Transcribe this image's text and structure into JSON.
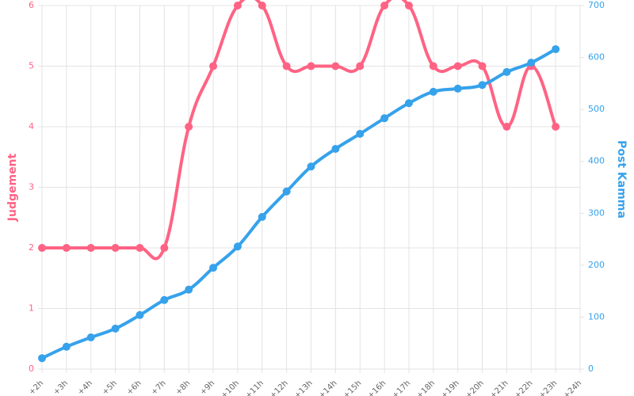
{
  "chart_data": {
    "type": "line",
    "categories": [
      "+2h",
      "+3h",
      "+4h",
      "+5h",
      "+6h",
      "+7h",
      "+8h",
      "+9h",
      "+10h",
      "+11h",
      "+12h",
      "+13h",
      "+14h",
      "+15h",
      "+16h",
      "+17h",
      "+18h",
      "+19h",
      "+20h",
      "+21h",
      "+22h",
      "+23h",
      "+24h"
    ],
    "y_label": "Judgement",
    "y2_label": "Post Kamma",
    "ylim": [
      0,
      6
    ],
    "yticks": [
      0,
      1,
      2,
      3,
      4,
      5,
      6
    ],
    "y2lim": [
      0,
      700
    ],
    "y2ticks": [
      0,
      100,
      200,
      300,
      400,
      500,
      600,
      700
    ],
    "grid": true,
    "series": [
      {
        "name": "Judgement",
        "color": "#ff6384",
        "axis": "y",
        "values": [
          2,
          2,
          2,
          2,
          2,
          2,
          4,
          5,
          6,
          6,
          5,
          5,
          5,
          5,
          6,
          6,
          5,
          5,
          5,
          4,
          5,
          4,
          null
        ]
      },
      {
        "name": "Post Kamma",
        "color": "#36a2eb",
        "axis": "y2",
        "values": [
          21,
          43,
          61,
          78,
          104,
          133,
          153,
          195,
          236,
          293,
          342,
          390,
          424,
          453,
          483,
          512,
          534,
          540,
          547,
          572,
          590,
          616,
          null
        ]
      }
    ]
  }
}
